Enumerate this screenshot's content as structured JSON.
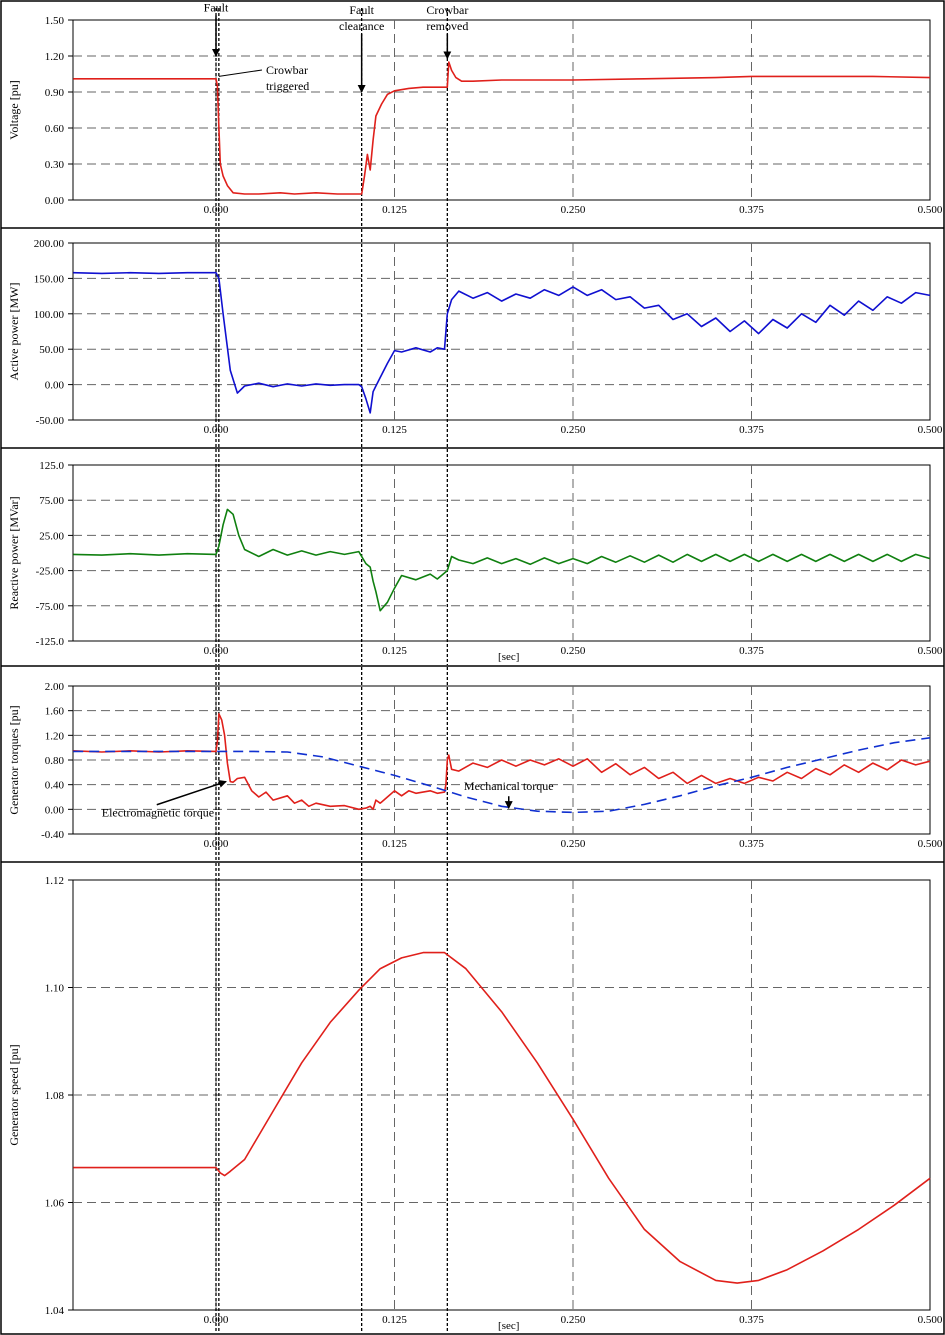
{
  "chart_data": [
    {
      "type": "line",
      "ylabel": "Voltage  [pu]",
      "xlim": [
        -0.1,
        0.5
      ],
      "ylim": [
        0.0,
        1.5
      ],
      "yticks": [
        0.0,
        0.3,
        0.6,
        0.9,
        1.2,
        1.5
      ],
      "ytick_labels": [
        "0.00",
        "0.30",
        "0.60",
        "0.90",
        "1.20",
        "1.50"
      ],
      "xticks": [
        0.0,
        0.125,
        0.25,
        0.375,
        0.5
      ],
      "xtick_labels": [
        "0.000",
        "0.125",
        "0.250",
        "0.375",
        "0.500"
      ],
      "xlabel": "",
      "grid": true,
      "series": [
        {
          "color": "#e0201b",
          "dashed": false,
          "x": [
            -0.1,
            -0.05,
            0.0,
            0.001,
            0.002,
            0.003,
            0.005,
            0.008,
            0.012,
            0.02,
            0.03,
            0.045,
            0.055,
            0.07,
            0.085,
            0.095,
            0.1,
            0.102,
            0.104,
            0.106,
            0.108,
            0.11,
            0.112,
            0.116,
            0.12,
            0.125,
            0.135,
            0.145,
            0.155,
            0.162,
            0.163,
            0.165,
            0.168,
            0.172,
            0.18,
            0.2,
            0.25,
            0.3,
            0.35,
            0.375,
            0.42,
            0.46,
            0.5
          ],
          "y": [
            1.01,
            1.01,
            1.01,
            0.95,
            0.6,
            0.3,
            0.2,
            0.12,
            0.06,
            0.05,
            0.05,
            0.06,
            0.05,
            0.06,
            0.05,
            0.05,
            0.05,
            0.05,
            0.2,
            0.38,
            0.25,
            0.5,
            0.7,
            0.8,
            0.88,
            0.91,
            0.93,
            0.94,
            0.94,
            0.94,
            1.15,
            1.08,
            1.02,
            0.99,
            0.99,
            1.0,
            1.0,
            1.01,
            1.02,
            1.03,
            1.03,
            1.03,
            1.02
          ]
        }
      ],
      "annotations": [
        {
          "label": "Fault",
          "x": 0.0,
          "y": 1.57,
          "arrow_to": [
            0.0,
            1.2
          ]
        },
        {
          "label": "Crowbar\ntriggered",
          "x": 0.035,
          "y": 1.05,
          "line_to": [
            0.002,
            1.03
          ]
        },
        {
          "label": "Fault\nclearance",
          "x": 0.102,
          "y": 1.55,
          "arrow_to": [
            0.102,
            0.9
          ]
        },
        {
          "label": "Crowbar\nremoved",
          "x": 0.162,
          "y": 1.55,
          "arrow_to": [
            0.162,
            1.18
          ]
        }
      ]
    },
    {
      "type": "line",
      "ylabel": "Active power [MW]",
      "xlim": [
        -0.1,
        0.5
      ],
      "ylim": [
        -50,
        200
      ],
      "yticks": [
        -50,
        0,
        50,
        100,
        150,
        200
      ],
      "ytick_labels": [
        "-50.00",
        "0.00",
        "50.00",
        "100.00",
        "150.00",
        "200.00"
      ],
      "xticks": [
        0.0,
        0.125,
        0.25,
        0.375,
        0.5
      ],
      "xtick_labels": [
        "0.000",
        "0.125",
        "0.250",
        "0.375",
        "0.500"
      ],
      "xlabel": "",
      "grid": true,
      "series": [
        {
          "color": "#1010d0",
          "dashed": false,
          "x": [
            -0.1,
            -0.08,
            -0.06,
            -0.04,
            -0.02,
            0.0,
            0.002,
            0.005,
            0.01,
            0.015,
            0.02,
            0.03,
            0.04,
            0.05,
            0.06,
            0.07,
            0.08,
            0.09,
            0.1,
            0.102,
            0.105,
            0.108,
            0.11,
            0.112,
            0.115,
            0.12,
            0.125,
            0.13,
            0.14,
            0.15,
            0.155,
            0.16,
            0.162,
            0.165,
            0.17,
            0.18,
            0.19,
            0.2,
            0.21,
            0.22,
            0.23,
            0.24,
            0.25,
            0.26,
            0.27,
            0.28,
            0.29,
            0.3,
            0.31,
            0.32,
            0.33,
            0.34,
            0.35,
            0.36,
            0.37,
            0.38,
            0.39,
            0.4,
            0.41,
            0.42,
            0.43,
            0.44,
            0.45,
            0.46,
            0.47,
            0.48,
            0.49,
            0.5
          ],
          "y": [
            158,
            157,
            158,
            157,
            158,
            158,
            150,
            100,
            20,
            -12,
            -2,
            2,
            -3,
            1,
            -2,
            1,
            -1,
            0,
            0,
            -3,
            -20,
            -40,
            -10,
            -2,
            10,
            30,
            48,
            46,
            52,
            46,
            52,
            50,
            100,
            120,
            132,
            122,
            130,
            118,
            128,
            122,
            134,
            126,
            138,
            126,
            134,
            120,
            124,
            108,
            112,
            92,
            100,
            82,
            94,
            75,
            90,
            72,
            92,
            80,
            100,
            88,
            112,
            98,
            118,
            105,
            124,
            115,
            130,
            126
          ]
        }
      ]
    },
    {
      "type": "line",
      "ylabel": "Reactive power [MVar]",
      "xlim": [
        -0.1,
        0.5
      ],
      "ylim": [
        -125,
        125
      ],
      "yticks": [
        -125,
        -75,
        -25,
        25,
        75,
        125
      ],
      "ytick_labels": [
        "-125.0",
        "-75.00",
        "-25.00",
        "25.00",
        "75.00",
        "125.0"
      ],
      "xticks": [
        0.0,
        0.125,
        0.25,
        0.375,
        0.5
      ],
      "xtick_labels": [
        "0.000",
        "0.125",
        "0.250",
        "0.375",
        "0.500"
      ],
      "xlabel": "[sec]",
      "grid": true,
      "series": [
        {
          "color": "#108010",
          "dashed": false,
          "x": [
            -0.1,
            -0.08,
            -0.06,
            -0.04,
            -0.02,
            0.0,
            0.002,
            0.005,
            0.008,
            0.012,
            0.016,
            0.02,
            0.03,
            0.04,
            0.05,
            0.06,
            0.07,
            0.08,
            0.09,
            0.1,
            0.102,
            0.105,
            0.108,
            0.11,
            0.112,
            0.115,
            0.12,
            0.125,
            0.13,
            0.14,
            0.15,
            0.155,
            0.162,
            0.165,
            0.17,
            0.18,
            0.19,
            0.2,
            0.21,
            0.22,
            0.23,
            0.24,
            0.25,
            0.26,
            0.27,
            0.28,
            0.29,
            0.3,
            0.31,
            0.32,
            0.33,
            0.34,
            0.35,
            0.36,
            0.37,
            0.38,
            0.39,
            0.4,
            0.41,
            0.42,
            0.43,
            0.44,
            0.45,
            0.46,
            0.47,
            0.48,
            0.49,
            0.5
          ],
          "y": [
            -2,
            -3,
            -1,
            -3,
            -1,
            -2,
            10,
            40,
            62,
            55,
            25,
            5,
            -5,
            5,
            -3,
            3,
            -3,
            2,
            -2,
            2,
            -5,
            -15,
            -20,
            -40,
            -55,
            -82,
            -70,
            -50,
            -32,
            -38,
            -30,
            -37,
            -25,
            -5,
            -10,
            -15,
            -7,
            -15,
            -8,
            -16,
            -7,
            -15,
            -8,
            -15,
            -5,
            -13,
            -4,
            -13,
            -3,
            -13,
            -2,
            -12,
            -2,
            -12,
            -2,
            -12,
            -2,
            -12,
            -2,
            -12,
            -2,
            -12,
            -2,
            -12,
            -2,
            -12,
            -2,
            -8
          ]
        }
      ]
    },
    {
      "type": "line",
      "ylabel": "Generator torques [pu]",
      "xlim": [
        -0.1,
        0.5
      ],
      "ylim": [
        -0.4,
        2.0
      ],
      "yticks": [
        -0.4,
        0.0,
        0.4,
        0.8,
        1.2,
        1.6,
        2.0
      ],
      "ytick_labels": [
        "-0.40",
        "0.00",
        "0.40",
        "0.80",
        "1.20",
        "1.60",
        "2.00"
      ],
      "xticks": [
        0.0,
        0.125,
        0.25,
        0.375,
        0.5
      ],
      "xtick_labels": [
        "0.000",
        "0.125",
        "0.250",
        "0.375",
        "0.500"
      ],
      "xlabel": "",
      "grid": true,
      "series": [
        {
          "name": "Electromagnetic torque",
          "color": "#e0201b",
          "dashed": false,
          "x": [
            -0.1,
            -0.08,
            -0.06,
            -0.04,
            -0.02,
            0.0,
            0.001,
            0.002,
            0.004,
            0.006,
            0.008,
            0.01,
            0.012,
            0.015,
            0.02,
            0.025,
            0.03,
            0.035,
            0.04,
            0.05,
            0.055,
            0.06,
            0.065,
            0.07,
            0.08,
            0.09,
            0.1,
            0.105,
            0.108,
            0.11,
            0.112,
            0.115,
            0.12,
            0.125,
            0.13,
            0.135,
            0.14,
            0.15,
            0.155,
            0.16,
            0.161,
            0.162,
            0.163,
            0.165,
            0.17,
            0.18,
            0.19,
            0.2,
            0.21,
            0.22,
            0.23,
            0.24,
            0.25,
            0.26,
            0.27,
            0.28,
            0.29,
            0.3,
            0.31,
            0.32,
            0.33,
            0.34,
            0.35,
            0.36,
            0.37,
            0.38,
            0.39,
            0.4,
            0.41,
            0.42,
            0.43,
            0.44,
            0.45,
            0.46,
            0.47,
            0.48,
            0.49,
            0.5
          ],
          "y": [
            0.95,
            0.93,
            0.95,
            0.93,
            0.95,
            0.94,
            1.1,
            1.55,
            1.45,
            1.2,
            0.75,
            0.45,
            0.44,
            0.5,
            0.52,
            0.3,
            0.2,
            0.28,
            0.15,
            0.22,
            0.1,
            0.15,
            0.05,
            0.1,
            0.05,
            0.06,
            0.0,
            0.02,
            0.05,
            0.0,
            0.15,
            0.1,
            0.2,
            0.3,
            0.22,
            0.3,
            0.26,
            0.3,
            0.26,
            0.28,
            0.4,
            0.8,
            0.88,
            0.65,
            0.62,
            0.75,
            0.68,
            0.8,
            0.7,
            0.8,
            0.72,
            0.82,
            0.7,
            0.82,
            0.6,
            0.74,
            0.56,
            0.68,
            0.5,
            0.6,
            0.42,
            0.55,
            0.42,
            0.5,
            0.42,
            0.52,
            0.46,
            0.6,
            0.5,
            0.66,
            0.56,
            0.72,
            0.6,
            0.75,
            0.64,
            0.8,
            0.72,
            0.78
          ]
        },
        {
          "name": "Mechanical torque",
          "color": "#1030d0",
          "dashed": true,
          "x": [
            -0.1,
            -0.05,
            0.0,
            0.025,
            0.05,
            0.075,
            0.1,
            0.125,
            0.15,
            0.175,
            0.2,
            0.225,
            0.25,
            0.275,
            0.3,
            0.325,
            0.35,
            0.375,
            0.4,
            0.425,
            0.45,
            0.475,
            0.5
          ],
          "y": [
            0.94,
            0.94,
            0.94,
            0.94,
            0.93,
            0.85,
            0.7,
            0.55,
            0.38,
            0.2,
            0.05,
            -0.03,
            -0.05,
            -0.03,
            0.08,
            0.22,
            0.38,
            0.52,
            0.68,
            0.82,
            0.96,
            1.08,
            1.16
          ]
        }
      ],
      "annotations": [
        {
          "label": "Electromagnetic torque",
          "x": -0.08,
          "y": -0.12,
          "arrow_to": [
            0.007,
            0.45
          ]
        },
        {
          "label": "Mechanical torque",
          "x": 0.205,
          "y": 0.31,
          "arrow_to": [
            0.205,
            0.02
          ]
        }
      ]
    },
    {
      "type": "line",
      "ylabel": "Generator speed [pu]",
      "xlim": [
        -0.1,
        0.5
      ],
      "ylim": [
        1.04,
        1.12
      ],
      "yticks": [
        1.04,
        1.06,
        1.08,
        1.1,
        1.12
      ],
      "ytick_labels": [
        "1.04",
        "1.06",
        "1.08",
        "1.10",
        "1.12"
      ],
      "xticks": [
        0.0,
        0.125,
        0.25,
        0.375,
        0.5
      ],
      "xtick_labels": [
        "0.000",
        "0.125",
        "0.250",
        "0.375",
        "0.500"
      ],
      "xlabel": "[sec]",
      "grid": true,
      "series": [
        {
          "color": "#e0201b",
          "dashed": false,
          "x": [
            -0.1,
            -0.05,
            0.0,
            0.003,
            0.006,
            0.01,
            0.02,
            0.04,
            0.06,
            0.08,
            0.1,
            0.115,
            0.13,
            0.145,
            0.16,
            0.175,
            0.2,
            0.225,
            0.25,
            0.275,
            0.3,
            0.325,
            0.35,
            0.365,
            0.38,
            0.4,
            0.425,
            0.45,
            0.475,
            0.5
          ],
          "y": [
            1.0665,
            1.0665,
            1.0665,
            1.0655,
            1.065,
            1.0658,
            1.068,
            1.077,
            1.086,
            1.0935,
            1.0995,
            1.1035,
            1.1055,
            1.1065,
            1.1065,
            1.1035,
            1.0955,
            1.086,
            1.0755,
            1.0645,
            1.055,
            1.049,
            1.0455,
            1.045,
            1.0455,
            1.0475,
            1.051,
            1.055,
            1.0595,
            1.0645
          ]
        }
      ]
    }
  ],
  "events": {
    "fault": 0.0,
    "crowbar_trigger": 0.002,
    "fault_clearance": 0.102,
    "crowbar_removed": 0.162
  }
}
